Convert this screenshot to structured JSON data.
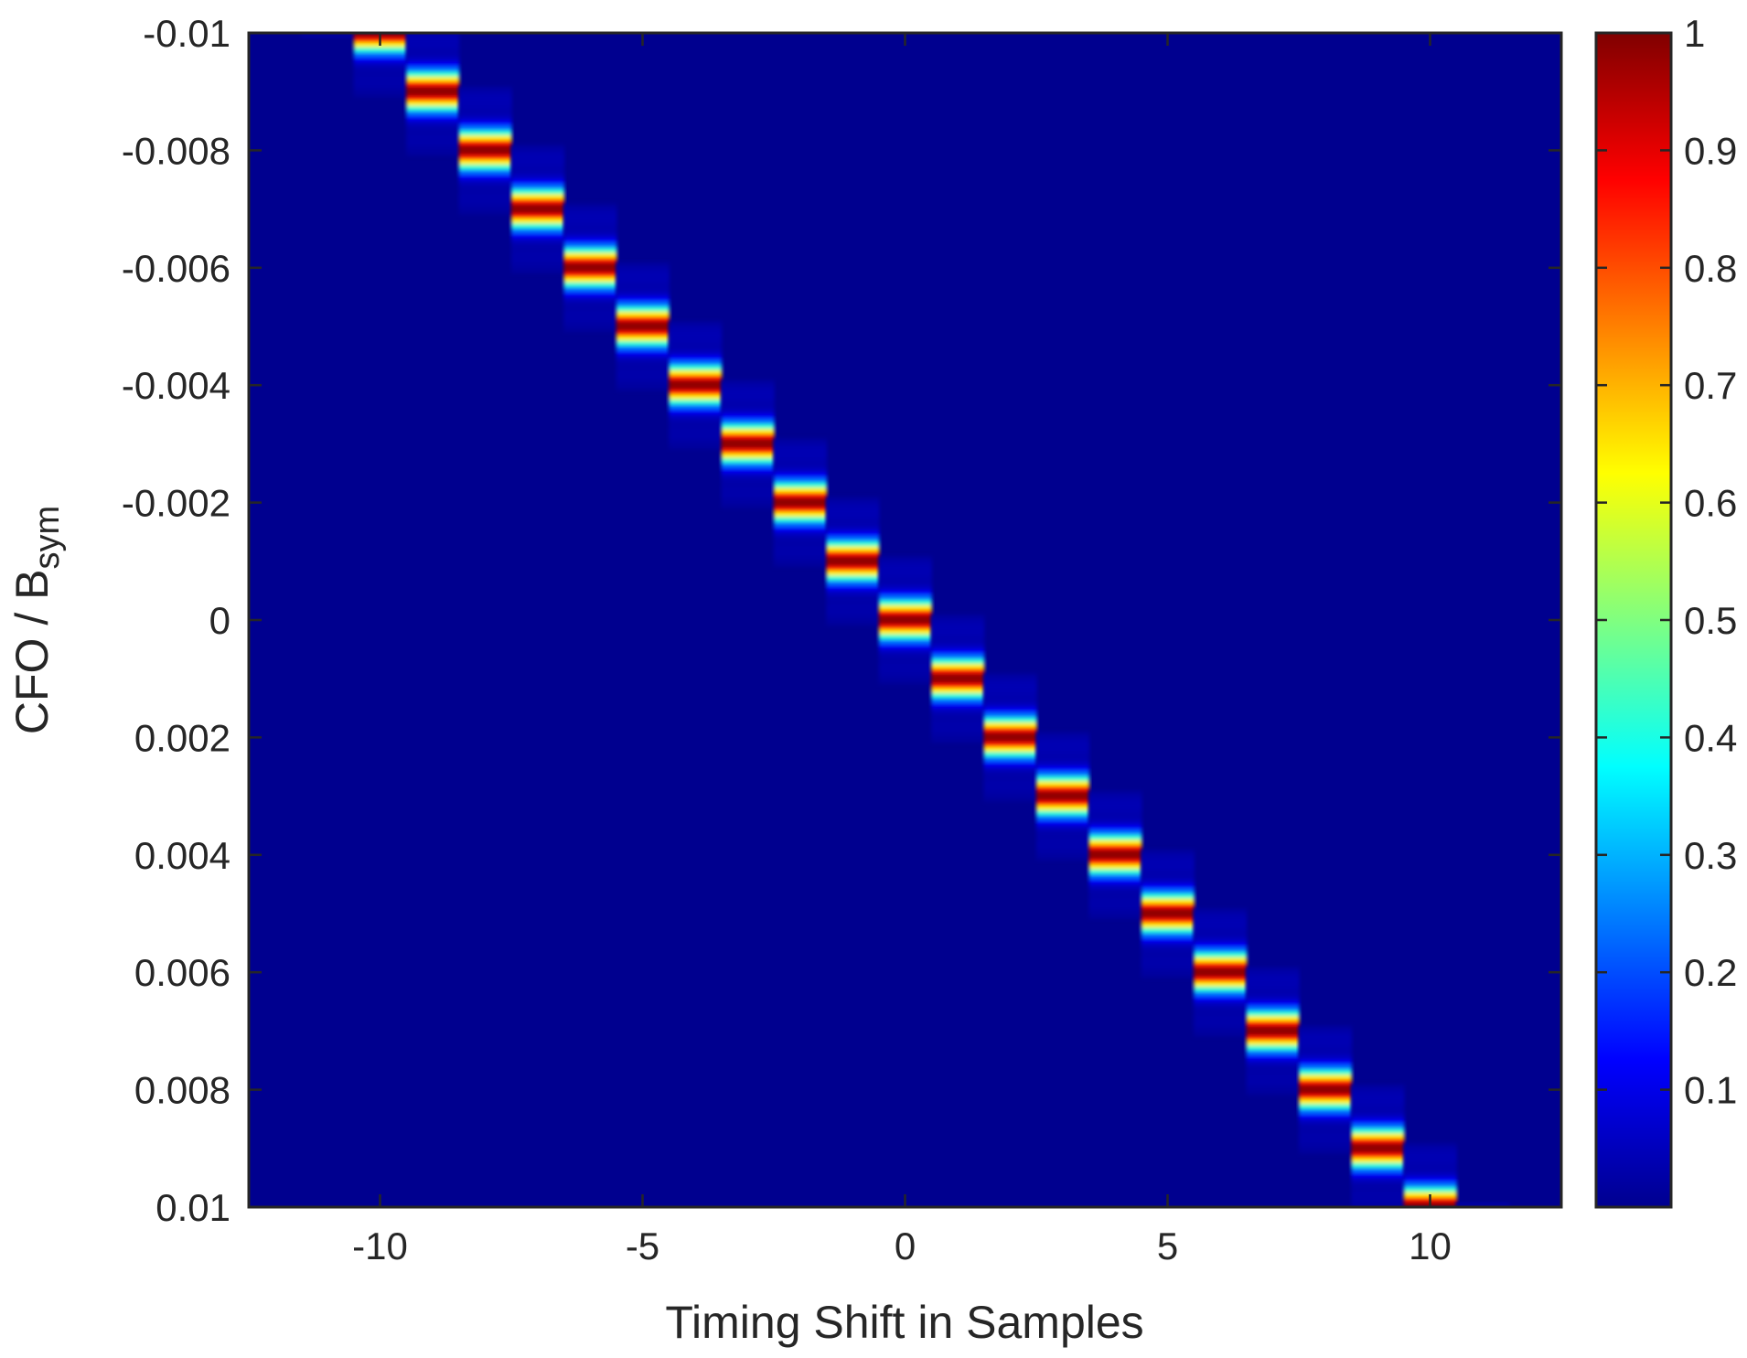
{
  "chart_data": {
    "type": "heatmap",
    "title": "",
    "xlabel": "Timing Shift in Samples",
    "ylabel_main": "CFO / B",
    "ylabel_sub": "sym",
    "x_range": [
      -12.5,
      12.5
    ],
    "y_range": [
      -0.01,
      0.01
    ],
    "y_reversed": true,
    "x_ticks": [
      -10,
      -5,
      0,
      5,
      10
    ],
    "x_tick_labels": [
      "-10",
      "-5",
      "0",
      "5",
      "10"
    ],
    "y_ticks": [
      -0.01,
      -0.008,
      -0.006,
      -0.004,
      -0.002,
      0,
      0.002,
      0.004,
      0.006,
      0.008,
      0.01
    ],
    "y_tick_labels": [
      "-0.01",
      "-0.008",
      "-0.006",
      "-0.004",
      "-0.002",
      "0",
      "0.002",
      "0.004",
      "0.006",
      "0.008",
      "0.01"
    ],
    "columns": [
      -12,
      -11,
      -10,
      -9,
      -8,
      -7,
      -6,
      -5,
      -4,
      -3,
      -2,
      -1,
      0,
      1,
      2,
      3,
      4,
      5,
      6,
      7,
      8,
      9,
      10,
      11,
      12
    ],
    "ridge": {
      "x_at_y_min": -10,
      "x_at_y_max": 10,
      "peak_value": 1
    },
    "colormap": "jet",
    "colorbar": {
      "range": [
        0,
        1
      ],
      "ticks": [
        0.1,
        0.2,
        0.3,
        0.4,
        0.5,
        0.6,
        0.7,
        0.8,
        0.9,
        1
      ],
      "tick_labels": [
        "0.1",
        "0.2",
        "0.3",
        "0.4",
        "0.5",
        "0.6",
        "0.7",
        "0.8",
        "0.9",
        "1"
      ]
    },
    "grid": false
  },
  "colors": {
    "axis": "#262626",
    "background": "#ffffff",
    "jet": [
      "#00008f",
      "#0000ff",
      "#0080ff",
      "#00ffff",
      "#80ff80",
      "#ffff00",
      "#ff8000",
      "#ff0000",
      "#800000"
    ]
  }
}
